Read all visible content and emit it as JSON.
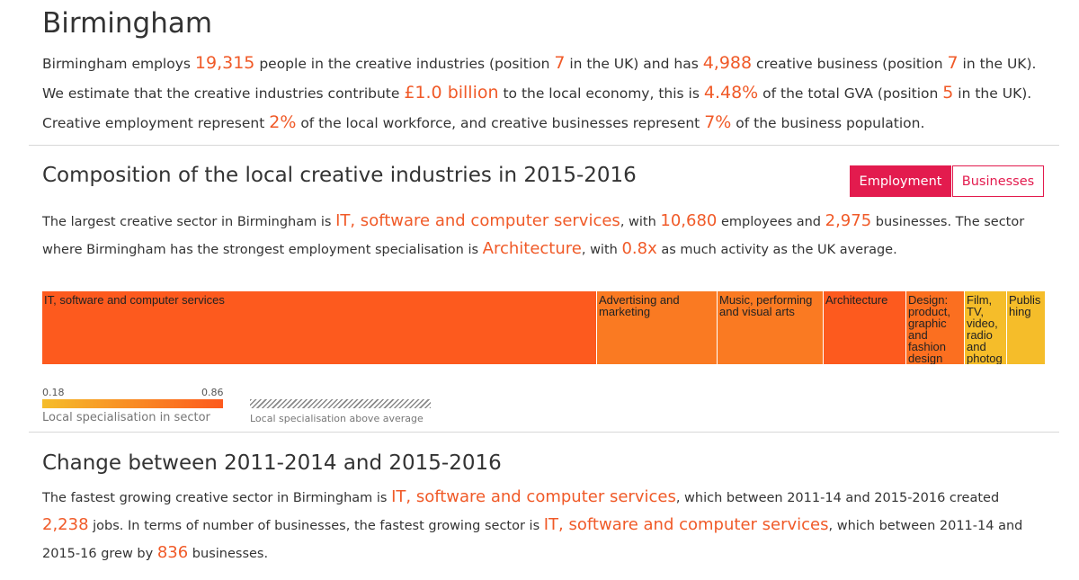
{
  "page": {
    "title": "Birmingham"
  },
  "intro": {
    "t1": "Birmingham employs ",
    "employment": "19,315",
    "t2": " people in the creative industries (position ",
    "employment_pos": "7",
    "t3": " in the UK) and has ",
    "businesses": "4,988",
    "t4": " creative business (position ",
    "business_pos": "7",
    "t5": " in the UK). We estimate that the creative industries contribute ",
    "gva": "£1.0 billion",
    "t6": " to the local economy, this is ",
    "gva_share": "4.48%",
    "t7": " of the total GVA (position ",
    "gva_pos": "5",
    "t8": " in the UK). Creative employment represent ",
    "workforce_share": "2%",
    "t9": " of the local workforce, and creative businesses represent ",
    "business_share": "7%",
    "t10": " of the business population."
  },
  "composition": {
    "heading": "Composition of the local creative industries in 2015-2016",
    "toggle": {
      "employment": "Employment",
      "businesses": "Businesses"
    },
    "t1": "The largest creative sector in Birmingham is ",
    "largest_sector": "IT, software and computer services",
    "t2": ", with ",
    "largest_employees": "10,680",
    "t3": " employees and ",
    "largest_businesses": "2,975",
    "t4": " businesses. The sector where Birmingham has the strongest employment specialisation is ",
    "specialised_sector": "Architecture",
    "t5": ", with ",
    "specialisation": "0.8x",
    "t6": " as much activity as the UK average."
  },
  "chart_data": {
    "type": "treemap",
    "metric": "employment",
    "unit": "employees (relative share)",
    "tiles": [
      {
        "label": "IT, software and computer services",
        "share": 0.553,
        "color": "#fd5a1e"
      },
      {
        "label": "Advertising and marketing",
        "share": 0.12,
        "color": "#fa7a22"
      },
      {
        "label": "Music, performing and visual arts",
        "share": 0.106,
        "color": "#fa7a22"
      },
      {
        "label": "Architecture",
        "share": 0.082,
        "color": "#fd5a1e"
      },
      {
        "label": "Design: product, graphic and fashion design",
        "share": 0.058,
        "color": "#fb6f20"
      },
      {
        "label": "Film, TV, video, radio and photography",
        "share": 0.042,
        "color": "#f5bd2a"
      },
      {
        "label": "Publishing",
        "share": 0.039,
        "color": "#f5bd2a"
      }
    ],
    "legend": {
      "min": "0.18",
      "max": "0.86",
      "label": "Local specialisation in sector",
      "hatch_label": "Local specialisation above average",
      "color_low": "#f5bd2a",
      "color_high": "#fd5a1e"
    }
  },
  "change": {
    "heading": "Change between 2011-2014 and 2015-2016",
    "t1": "The fastest growing creative sector in Birmingham is ",
    "sector1": "IT, software and computer services",
    "t2": ", which between 2011-14 and 2015-2016 created ",
    "jobs": "2,238",
    "t3": " jobs. In terms of number of businesses, the fastest growing sector is ",
    "sector2": "IT, software and computer services",
    "t4": ", which between 2011-14 and 2015-16 grew by ",
    "biz_growth": "836",
    "t5": " businesses."
  },
  "colors": {
    "accent": "#f05a28",
    "toggle_active": "#e31b4e"
  }
}
